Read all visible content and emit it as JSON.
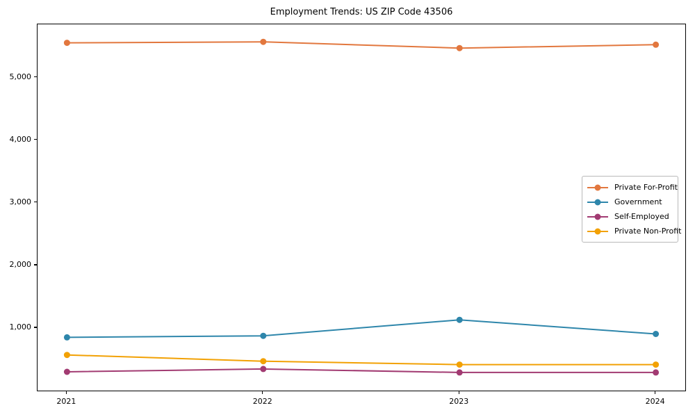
{
  "chart_data": {
    "type": "line",
    "title": "Employment Trends: US ZIP Code 43506",
    "x": [
      2021,
      2022,
      2023,
      2024
    ],
    "x_tick_labels": [
      "2021",
      "2022",
      "2023",
      "2024"
    ],
    "series": [
      {
        "name": "Private For-Profit",
        "color": "#E2773E",
        "values": [
          5555,
          5570,
          5470,
          5525
        ]
      },
      {
        "name": "Government",
        "color": "#2E86AB",
        "values": [
          850,
          875,
          1130,
          905
        ]
      },
      {
        "name": "Self-Employed",
        "color": "#A23B72",
        "values": [
          300,
          345,
          290,
          290
        ]
      },
      {
        "name": "Private Non-Profit",
        "color": "#F2A104",
        "values": [
          570,
          470,
          415,
          415
        ]
      }
    ],
    "xlim": [
      2020.85,
      2024.15
    ],
    "ylim": [
      0,
      5850
    ],
    "y_ticks": [
      1000,
      2000,
      3000,
      4000,
      5000
    ],
    "y_tick_labels": [
      "1,000",
      "2,000",
      "3,000",
      "4,000",
      "5,000"
    ],
    "xlabel": "",
    "ylabel": "",
    "grid": false,
    "legend_position": "right-middle",
    "marker": "circle",
    "marker_size": 9,
    "line_width": 2
  },
  "colors": {
    "background": "#ffffff",
    "spine": "#000000",
    "tick": "#000000",
    "legend_border": "#b9b9b9"
  }
}
